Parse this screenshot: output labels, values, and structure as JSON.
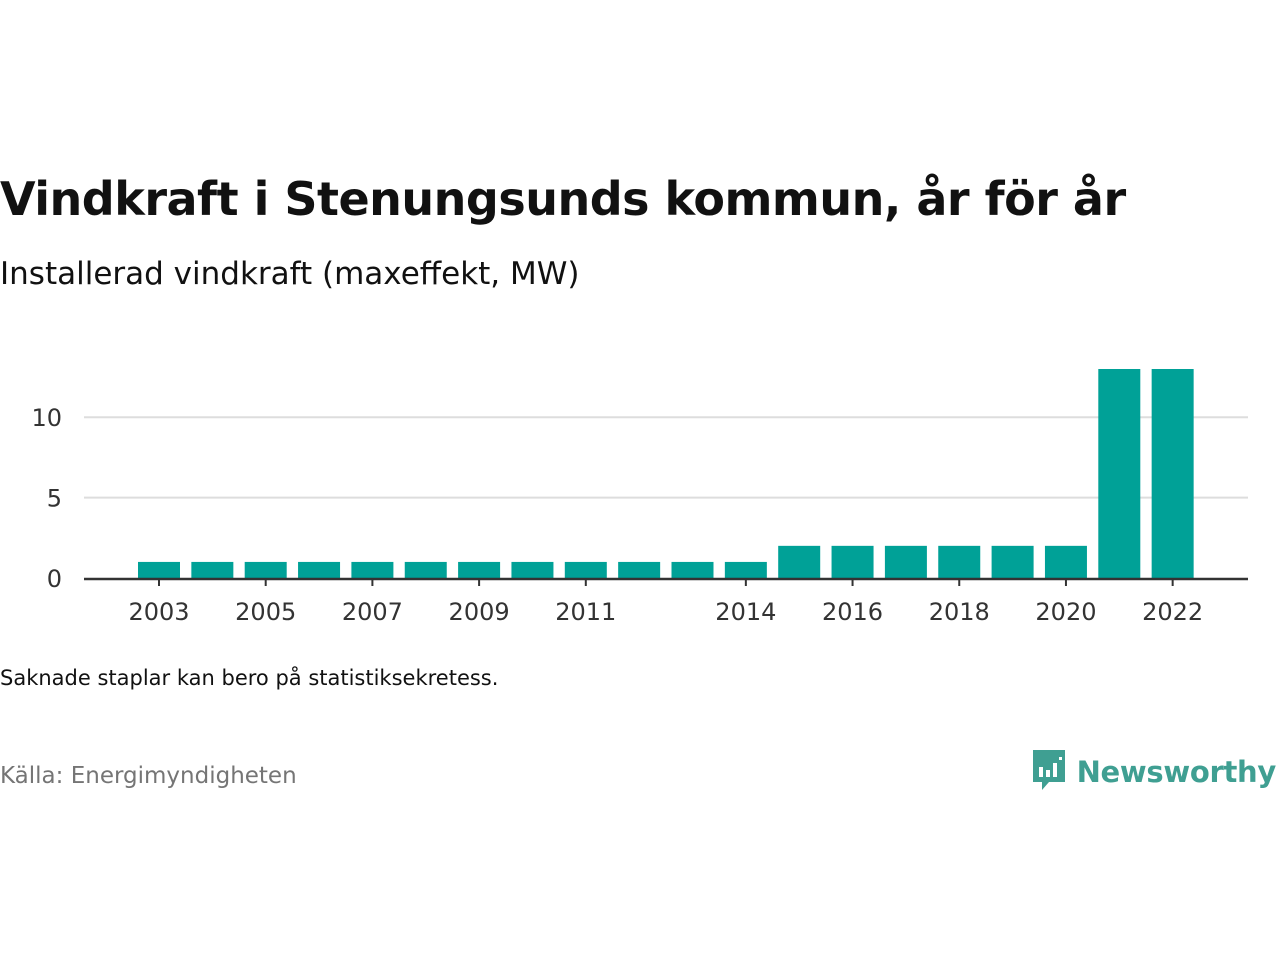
{
  "title": "Vindkraft i Stenungsunds kommun, år för år",
  "subtitle": "Installerad vindkraft (maxeffekt, MW)",
  "note": "Saknade staplar kan bero på statistiksekretess.",
  "source": "Källa: Energimyndigheten",
  "brand": {
    "name": "Newsworthy",
    "icon": "newsworthy-logo-icon"
  },
  "colors": {
    "bar": "#00a197",
    "brand": "#3f9f92",
    "grid": "#dddddd",
    "axis": "#333333"
  },
  "chart_data": {
    "type": "bar",
    "categories": [
      "2003",
      "2004",
      "2005",
      "2006",
      "2007",
      "2008",
      "2009",
      "2010",
      "2011",
      "2012",
      "2013",
      "2014",
      "2015",
      "2016",
      "2017",
      "2018",
      "2019",
      "2020",
      "2021",
      "2022"
    ],
    "values": [
      1,
      1,
      1,
      1,
      1,
      1,
      1,
      1,
      1,
      1,
      1,
      1,
      2,
      2,
      2,
      2,
      2,
      2,
      13,
      13
    ],
    "x_tick_labels": [
      "2003",
      "2005",
      "2007",
      "2009",
      "2011",
      "2014",
      "2016",
      "2018",
      "2020",
      "2022"
    ],
    "y_ticks": [
      0,
      5,
      10
    ],
    "ylim": [
      0,
      13
    ],
    "grid": true,
    "xlabel": "",
    "ylabel": ""
  }
}
